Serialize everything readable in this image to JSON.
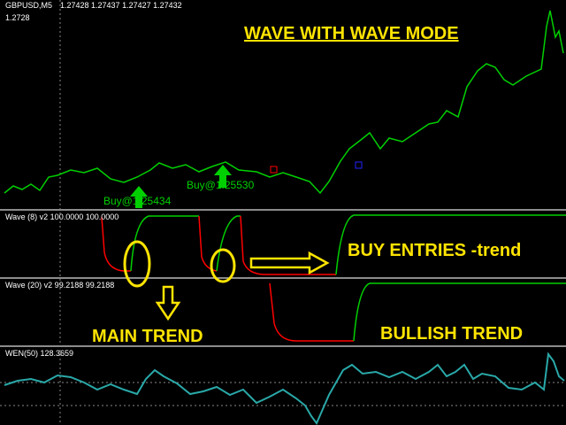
{
  "header": {
    "symbol": "GBPUSD,M5",
    "ohlc": "1.27428 1.27437 1.27427 1.27432",
    "price_level": "1.2728"
  },
  "title": "WAVE WITH WAVE MODE",
  "signals": [
    {
      "label": "Buy@1.25434"
    },
    {
      "label": "Buy@1.25530"
    }
  ],
  "panels": [
    {
      "label": "Wave (8) v2 100.0000 100.0000",
      "annotation": "BUY ENTRIES -trend"
    },
    {
      "label": "Wave (20) v2 99.2188 99.2188",
      "annotation_left": "MAIN TREND",
      "annotation_right": "BULLISH TREND"
    },
    {
      "label": "WEN(50) 128.3659"
    }
  ]
}
